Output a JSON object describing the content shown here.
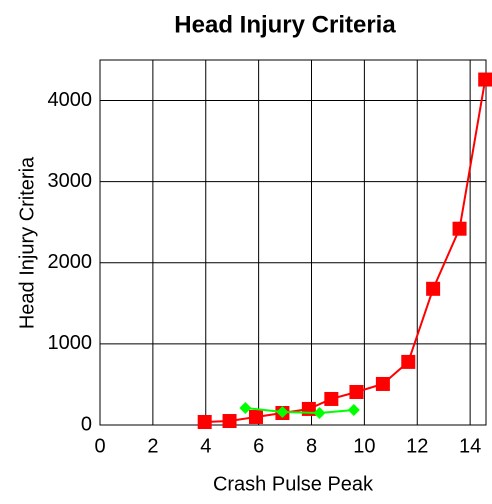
{
  "chart_data": {
    "type": "line",
    "title": "Head Injury Criteria",
    "x_label": "Crash Pulse Peak",
    "y_label": "Head Injury Criteria",
    "xlim": [
      0,
      14.6
    ],
    "xticks": [
      0,
      2,
      4,
      6,
      8,
      10,
      12,
      14
    ],
    "ylim": [
      0,
      4500
    ],
    "yticks": [
      0,
      1000,
      2000,
      3000,
      4000
    ],
    "grid": true,
    "series": [
      {
        "color": "#ff0000",
        "marker": "square",
        "x": [
          3.96,
          4.9,
          5.9,
          6.9,
          7.9,
          8.75,
          9.7,
          10.7,
          11.66,
          12.6,
          13.6,
          14.57
        ],
        "values": [
          37,
          49,
          99,
          148,
          198,
          321,
          407,
          506,
          778,
          1679,
          2420,
          4259
        ]
      },
      {
        "color": "#00ff00",
        "marker": "diamond",
        "x": [
          5.5,
          6.9,
          8.3,
          9.6
        ],
        "values": [
          210,
          160,
          148,
          185
        ]
      }
    ]
  }
}
